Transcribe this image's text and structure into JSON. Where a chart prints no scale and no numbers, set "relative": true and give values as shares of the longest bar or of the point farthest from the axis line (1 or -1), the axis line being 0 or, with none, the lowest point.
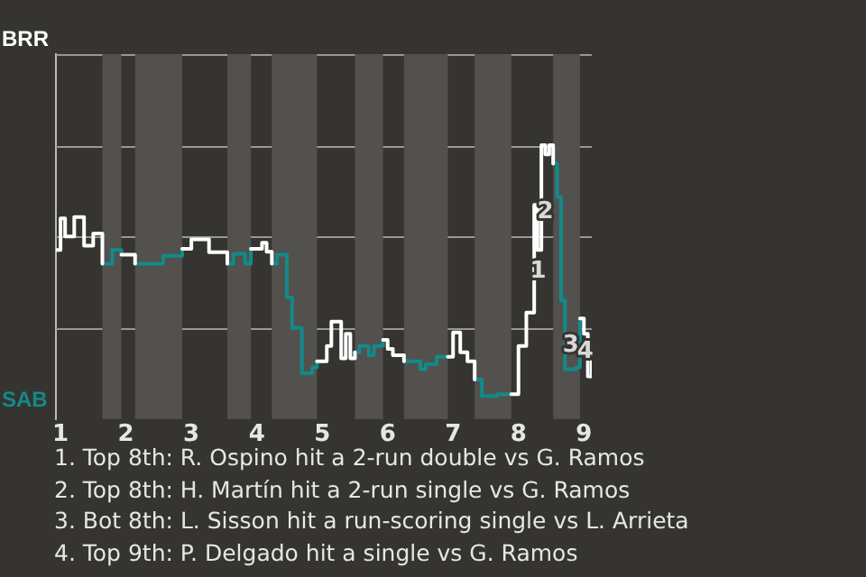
{
  "chart_data": {
    "type": "step",
    "relative": true,
    "legend": false,
    "ref_lines": [
      {
        "axis": "y",
        "value": 0.333,
        "color": "#9a9894"
      },
      {
        "axis": "y",
        "value": 0.667,
        "color": "#9a9894"
      },
      {
        "axis": "y",
        "value": 1,
        "color": "#9a9894"
      },
      {
        "axis": "y",
        "value": 1.333,
        "color": "#9a9894"
      }
    ],
    "tick_labels": "x",
    "marker": "none",
    "xlim": [
      0.93,
      9.12
    ],
    "xticks": [
      1,
      2,
      3,
      4,
      5,
      6,
      7,
      8,
      9
    ],
    "x": [
      0.93,
      1,
      1.07,
      1.14,
      1.21,
      1.29,
      1.36,
      1.43,
      1.5,
      1.57,
      1.64,
      1.71,
      1.79,
      1.86,
      1.93,
      2,
      2.14,
      2.29,
      2.43,
      2.57,
      2.71,
      2.86,
      3,
      3.09,
      3.18,
      3.27,
      3.36,
      3.45,
      3.55,
      3.64,
      3.73,
      3.82,
      3.91,
      4,
      4.08,
      4.15,
      4.23,
      4.31,
      4.38,
      4.46,
      4.54,
      4.62,
      4.69,
      4.77,
      4.85,
      4.92,
      5,
      5.07,
      5.14,
      5.21,
      5.29,
      5.36,
      5.43,
      5.5,
      5.57,
      5.64,
      5.71,
      5.79,
      5.86,
      5.93,
      6,
      6.08,
      6.17,
      6.25,
      6.33,
      6.42,
      6.5,
      6.58,
      6.67,
      6.75,
      6.83,
      6.92,
      7,
      7.11,
      7.22,
      7.33,
      7.44,
      7.56,
      7.67,
      7.78,
      7.89,
      8,
      8.06,
      8.12,
      8.18,
      8.24,
      8.29,
      8.35,
      8.41,
      8.47,
      8.53,
      8.59,
      8.65,
      8.71,
      8.76,
      8.82,
      8.88,
      8.94,
      9,
      9.06,
      9.12
    ],
    "bands": [
      {
        "axis": "x",
        "from": 1.64,
        "to": 1.93,
        "color": "#53514d"
      },
      {
        "axis": "x",
        "from": 2.14,
        "to": 2.86,
        "color": "#53514d"
      },
      {
        "axis": "x",
        "from": 3.55,
        "to": 3.91,
        "color": "#53514d"
      },
      {
        "axis": "x",
        "from": 4.23,
        "to": 4.92,
        "color": "#53514d"
      },
      {
        "axis": "x",
        "from": 5.5,
        "to": 5.93,
        "color": "#53514d"
      },
      {
        "axis": "x",
        "from": 6.25,
        "to": 6.92,
        "color": "#53514d"
      },
      {
        "axis": "x",
        "from": 7.33,
        "to": 7.89,
        "color": "#53514d"
      },
      {
        "axis": "x",
        "from": 8.53,
        "to": 8.94,
        "color": "#53514d"
      }
    ],
    "series": [
      {
        "name": "BRR",
        "color": "#ffffff",
        "values": [
          0.618,
          0.733,
          0.667,
          0.667,
          0.738,
          0.738,
          0.633,
          0.633,
          0.678,
          0.678,
          0.567,
          null,
          null,
          null,
          0.6,
          0.6,
          0.567,
          null,
          null,
          null,
          null,
          0.622,
          0.656,
          0.656,
          0.656,
          0.609,
          0.609,
          0.609,
          0.567,
          null,
          null,
          null,
          0.622,
          0.622,
          0.644,
          0.611,
          0.567,
          null,
          null,
          null,
          null,
          null,
          null,
          null,
          null,
          0.211,
          0.211,
          0.267,
          0.356,
          0.356,
          0.222,
          0.311,
          0.222,
          0.244,
          null,
          null,
          null,
          null,
          null,
          0.289,
          0.256,
          0.233,
          0.233,
          0.211,
          null,
          null,
          null,
          null,
          null,
          null,
          null,
          0.227,
          0.316,
          0.244,
          0.211,
          0.144,
          null,
          null,
          null,
          null,
          0.091,
          0.267,
          0.267,
          0.389,
          0.389,
          0.782,
          0.618,
          1,
          0.967,
          1,
          0.933,
          null,
          null,
          null,
          null,
          null,
          null,
          0.367,
          0.311,
          0.156,
          0.211
        ]
      },
      {
        "name": "SAB",
        "color": "#138a8a",
        "values": [
          null,
          null,
          null,
          null,
          null,
          null,
          null,
          null,
          null,
          null,
          0.567,
          0.567,
          0.618,
          0.618,
          0.6,
          null,
          0.567,
          0.567,
          0.567,
          0.596,
          0.596,
          0.622,
          null,
          null,
          null,
          null,
          null,
          null,
          0.567,
          0.604,
          0.604,
          0.567,
          0.622,
          null,
          null,
          null,
          0.567,
          0.6,
          0.6,
          0.444,
          0.333,
          0.333,
          0.167,
          0.167,
          0.189,
          0.211,
          null,
          null,
          null,
          null,
          null,
          null,
          null,
          0.244,
          0.267,
          0.267,
          0.233,
          0.267,
          0.267,
          0.289,
          null,
          null,
          null,
          0.211,
          0.211,
          0.211,
          0.182,
          0.2,
          0.2,
          0.227,
          0.227,
          0.227,
          null,
          null,
          null,
          0.144,
          0.084,
          0.084,
          0.091,
          0.091,
          0.091,
          null,
          null,
          null,
          null,
          null,
          null,
          null,
          null,
          null,
          0.933,
          0.811,
          0.433,
          0.182,
          0.182,
          0.182,
          0.189,
          0.367,
          null,
          null,
          null
        ]
      }
    ],
    "annotations": [
      {
        "text": "1",
        "x": 8.3,
        "y": 0.54
      },
      {
        "text": "2",
        "x": 8.41,
        "y": 0.756
      },
      {
        "text": "3",
        "x": 8.8,
        "y": 0.267
      },
      {
        "text": "4",
        "x": 9.02,
        "y": 0.244
      },
      "1. Top 8th: R. Ospino hit a 2-run double vs G. Ramos",
      "2. Top 8th: H. Martín hit a 2-run single vs G. Ramos",
      "3. Bot 8th: L. Sisson hit a run-scoring single vs L. Arrieta",
      "4. Top 9th: P. Delgado hit a single vs G. Ramos"
    ]
  }
}
